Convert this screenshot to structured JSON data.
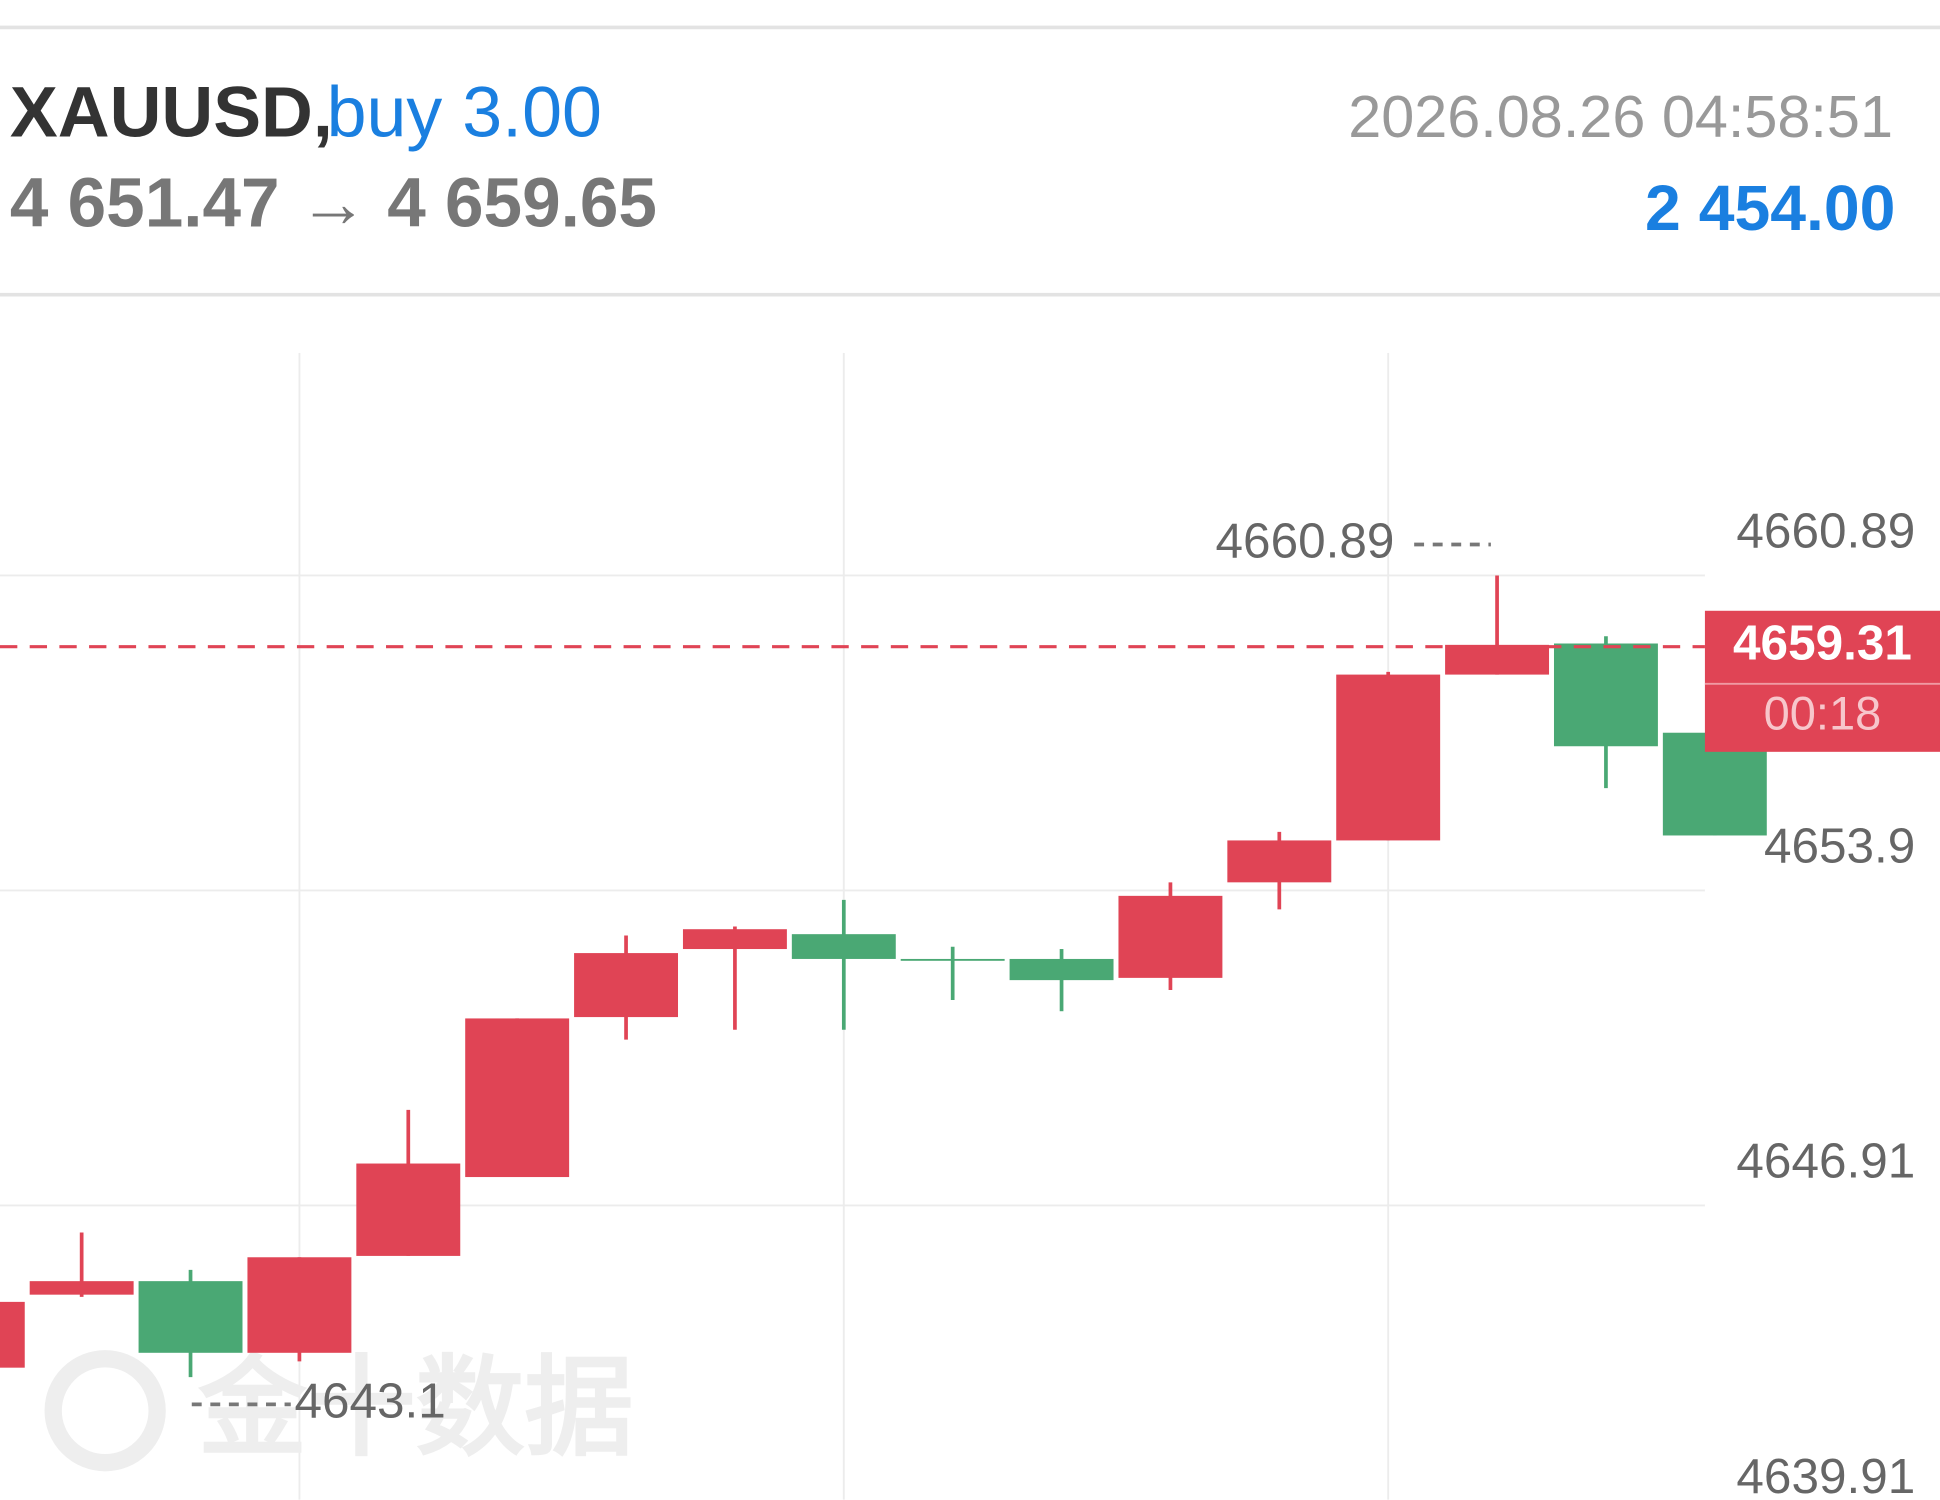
{
  "header": {
    "symbol": "XAUUSD,",
    "side": "buy 3.00",
    "prices": "4 651.47 → 4 659.65",
    "time": "2026.08.26 04:58:51",
    "profit": "2 454.00"
  },
  "chart_data": {
    "type": "candlestick",
    "open": [
      4643.31,
      4644.93,
      4645.23,
      4643.64,
      4645.79,
      4647.54,
      4651.09,
      4652.6,
      4652.93,
      4652.38,
      4652.38,
      4651.96,
      4654.08,
      4655.01,
      4658.69,
      4659.38,
      4657.4
    ],
    "high": [
      4644.77,
      4646.31,
      4645.48,
      4645.76,
      4649.03,
      4651.06,
      4652.9,
      4653.1,
      4653.69,
      4652.65,
      4652.6,
      4654.08,
      4655.2,
      4658.75,
      4660.89,
      4659.54,
      4657.4
    ],
    "low": [
      4643.31,
      4644.88,
      4643.1,
      4643.45,
      4645.79,
      4647.54,
      4650.59,
      4650.81,
      4650.81,
      4651.47,
      4651.22,
      4651.69,
      4653.48,
      4655.01,
      4658.69,
      4656.17,
      4655.12
    ],
    "close": [
      4644.77,
      4645.23,
      4643.64,
      4645.76,
      4647.84,
      4651.06,
      4652.51,
      4653.04,
      4652.38,
      4652.36,
      4651.91,
      4653.78,
      4655.01,
      4658.69,
      4659.35,
      4657.1,
      4655.12
    ],
    "up_color": "#e04455",
    "down_color": "#4aa874",
    "ylim": [
      4639.5,
      4665.83
    ],
    "yticks": [
      4660.89,
      4653.9,
      4646.91,
      4639.91
    ],
    "grid": true,
    "high_label": 4660.89,
    "low_label": 4643.1,
    "current_price": 4659.31,
    "countdown": "00:18",
    "watermark": "金十数据"
  }
}
